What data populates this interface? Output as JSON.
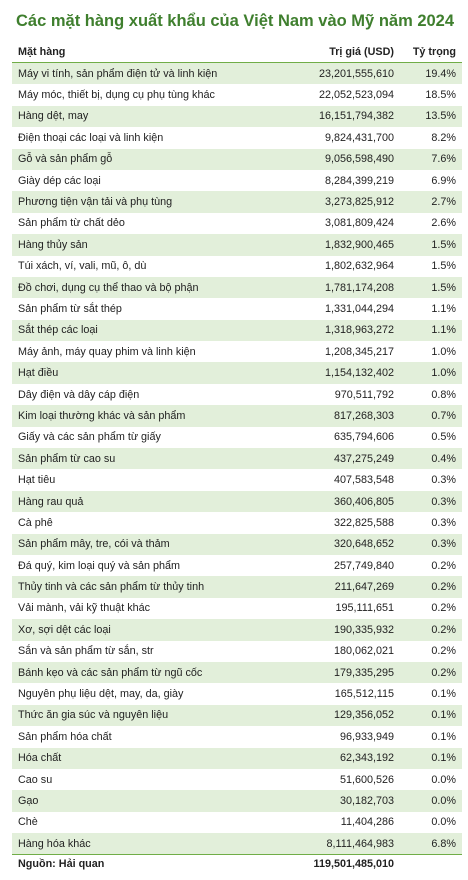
{
  "title": "Các mặt hàng xuất khẩu của Việt Nam vào Mỹ năm 2024",
  "table": {
    "header": [
      "Mặt hàng",
      "Trị giá (USD)",
      "Tỷ trọng"
    ],
    "rows": [
      [
        "Máy vi tính, sản phẩm điện tử và linh kiện",
        "23,201,555,610",
        "19.4%"
      ],
      [
        "Máy móc, thiết bị, dụng cụ phụ tùng khác",
        "22,052,523,094",
        "18.5%"
      ],
      [
        "Hàng dệt, may",
        "16,151,794,382",
        "13.5%"
      ],
      [
        "Điện thoại các loại và linh kiện",
        "9,824,431,700",
        "8.2%"
      ],
      [
        "Gỗ và sản phẩm gỗ",
        "9,056,598,490",
        "7.6%"
      ],
      [
        "Giày dép các loại",
        "8,284,399,219",
        "6.9%"
      ],
      [
        "Phương tiện vận tải và phụ tùng",
        "3,273,825,912",
        "2.7%"
      ],
      [
        "Sản phẩm từ chất dẻo",
        "3,081,809,424",
        "2.6%"
      ],
      [
        "Hàng thủy sản",
        "1,832,900,465",
        "1.5%"
      ],
      [
        "Túi xách, ví, vali, mũ, ô, dù",
        "1,802,632,964",
        "1.5%"
      ],
      [
        "Đồ chơi, dụng cụ thể thao và bộ phận",
        "1,781,174,208",
        "1.5%"
      ],
      [
        "Sản phẩm từ sắt thép",
        "1,331,044,294",
        "1.1%"
      ],
      [
        "Sắt thép các loại",
        "1,318,963,272",
        "1.1%"
      ],
      [
        "Máy ảnh, máy quay phim và linh kiện",
        "1,208,345,217",
        "1.0%"
      ],
      [
        "Hạt điều",
        "1,154,132,402",
        "1.0%"
      ],
      [
        "Dây điện và dây cáp điện",
        "970,511,792",
        "0.8%"
      ],
      [
        "Kim loại thường khác và sản phẩm",
        "817,268,303",
        "0.7%"
      ],
      [
        "Giấy và các sản phẩm từ giấy",
        "635,794,606",
        "0.5%"
      ],
      [
        "Sản phẩm từ cao su",
        "437,275,249",
        "0.4%"
      ],
      [
        "Hạt tiêu",
        "407,583,548",
        "0.3%"
      ],
      [
        "Hàng rau quả",
        "360,406,805",
        "0.3%"
      ],
      [
        "Cà phê",
        "322,825,588",
        "0.3%"
      ],
      [
        "Sản phẩm mây, tre, cói và thảm",
        "320,648,652",
        "0.3%"
      ],
      [
        "Đá quý, kim loại quý và sản phẩm",
        "257,749,840",
        "0.2%"
      ],
      [
        "Thủy tinh và các sản phẩm từ thủy tinh",
        "211,647,269",
        "0.2%"
      ],
      [
        "Vải mành, vải kỹ thuật khác",
        "195,111,651",
        "0.2%"
      ],
      [
        "Xơ, sợi dệt các loại",
        "190,335,932",
        "0.2%"
      ],
      [
        "Sắn và sản phẩm từ sắn, str",
        "180,062,021",
        "0.2%"
      ],
      [
        "Bánh kẹo và các sản phẩm từ ngũ cốc",
        "179,335,295",
        "0.2%"
      ],
      [
        "Nguyên phụ liệu dệt, may, da, giày",
        "165,512,115",
        "0.1%"
      ],
      [
        "Thức ăn gia súc và nguyên liệu",
        "129,356,052",
        "0.1%"
      ],
      [
        "Sản phẩm hóa chất",
        "96,933,949",
        "0.1%"
      ],
      [
        "Hóa chất",
        "62,343,192",
        "0.1%"
      ],
      [
        "Cao su",
        "51,600,526",
        "0.0%"
      ],
      [
        "Gạo",
        "30,182,703",
        "0.0%"
      ],
      [
        "Chè",
        "11,404,286",
        "0.0%"
      ],
      [
        "Hàng hóa khác",
        "8,111,464,983",
        "6.8%"
      ]
    ],
    "footer": [
      "Nguồn: Hải quan",
      "119,501,485,010"
    ]
  }
}
